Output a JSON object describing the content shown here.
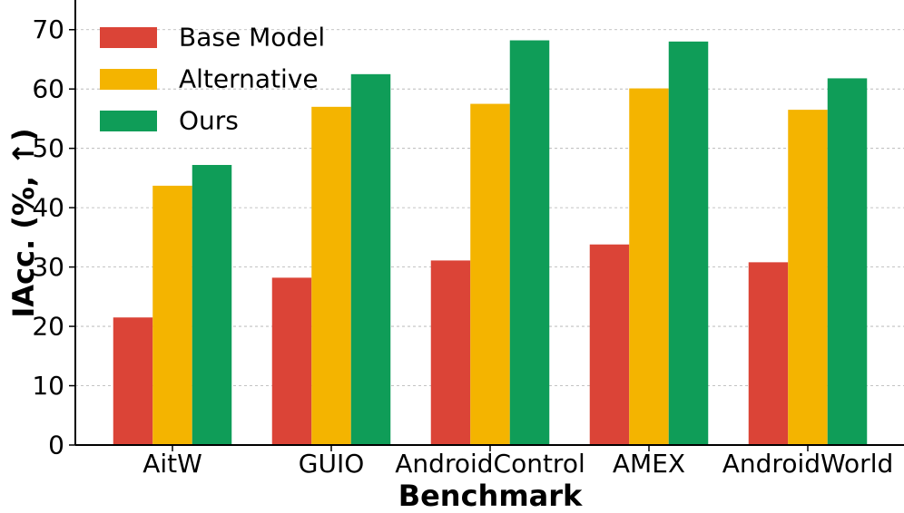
{
  "chart_data": {
    "type": "bar",
    "title": "",
    "xlabel": "Benchmark",
    "ylabel": "IAcc. (%, ↑)",
    "ylim": [
      0,
      75
    ],
    "yticks": [
      "0",
      "10",
      "20",
      "30",
      "40",
      "50",
      "60",
      "70"
    ],
    "grid": true,
    "legend_position": "top-left",
    "categories": [
      "AitW",
      "GUIO",
      "AndroidControl",
      "AMEX",
      "AndroidWorld"
    ],
    "series": [
      {
        "name": "Base Model",
        "color": "#db4437",
        "values": [
          21.5,
          28.2,
          31.1,
          33.8,
          30.8
        ]
      },
      {
        "name": "Alternative",
        "color": "#f4b400",
        "values": [
          43.7,
          57.0,
          57.5,
          60.1,
          56.5
        ]
      },
      {
        "name": "Ours",
        "color": "#0f9d58",
        "values": [
          47.2,
          62.5,
          68.2,
          68.0,
          61.8
        ]
      }
    ]
  }
}
